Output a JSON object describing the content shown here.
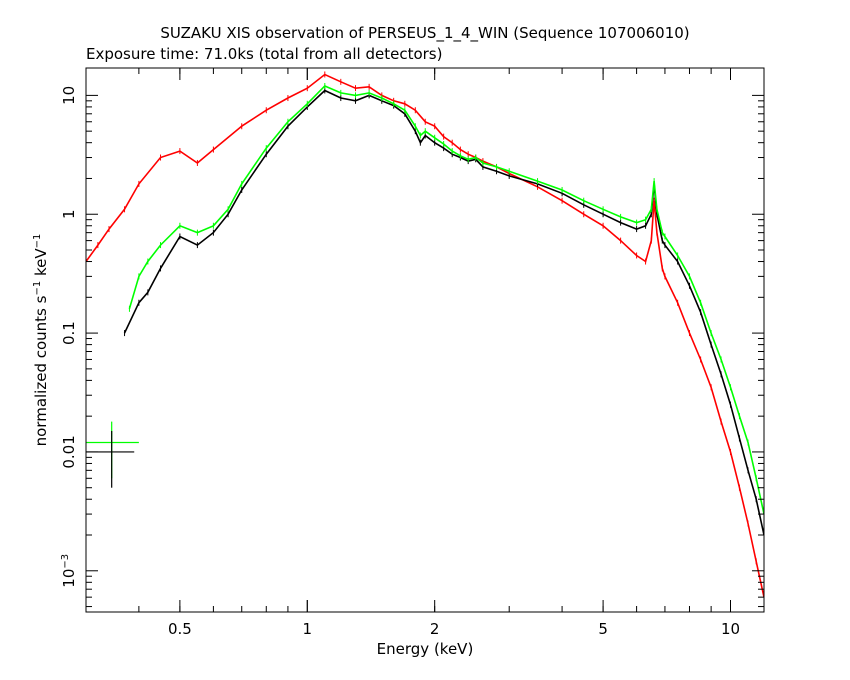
{
  "chart_data": {
    "type": "line",
    "title": "SUZAKU XIS observation of PERSEUS_1_4_WIN (Sequence 107006010)",
    "subtitle": "Exposure time: 71.0ks (total from all detectors)",
    "xlabel": "Energy (keV)",
    "ylabel_parts": {
      "main": "normalized counts s",
      "exp1": "−1",
      "mid": " keV",
      "exp2": "−1"
    },
    "x_scale": "log",
    "y_scale": "log",
    "xlim": [
      0.3,
      12.0
    ],
    "ylim": [
      0.00045,
      17
    ],
    "x_ticks": [
      {
        "value": 0.5,
        "label": "0.5"
      },
      {
        "value": 1,
        "label": "1"
      },
      {
        "value": 2,
        "label": "2"
      },
      {
        "value": 5,
        "label": "5"
      },
      {
        "value": 10,
        "label": "10"
      }
    ],
    "y_ticks": [
      {
        "value": 10,
        "label": "10"
      },
      {
        "value": 1,
        "label": "1"
      },
      {
        "value": 0.1,
        "label": "0.1"
      },
      {
        "value": 0.01,
        "label": "0.01"
      },
      {
        "value": 0.001,
        "label_base": "10",
        "label_exp": "−3"
      }
    ],
    "grid": false,
    "legend": "none",
    "series": [
      {
        "color": "#ff0000",
        "x": [
          0.3,
          0.32,
          0.34,
          0.37,
          0.4,
          0.45,
          0.5,
          0.55,
          0.6,
          0.7,
          0.8,
          0.9,
          1.0,
          1.1,
          1.2,
          1.3,
          1.4,
          1.5,
          1.6,
          1.7,
          1.8,
          1.9,
          2.0,
          2.1,
          2.2,
          2.3,
          2.4,
          2.5,
          2.6,
          2.8,
          3.0,
          3.5,
          4.0,
          4.5,
          5.0,
          5.5,
          6.0,
          6.3,
          6.5,
          6.6,
          6.7,
          6.9,
          7.0,
          7.5,
          8.0,
          8.5,
          9.0,
          9.5,
          10.0,
          10.5,
          11.0,
          11.5,
          12.0
        ],
        "y": [
          0.4,
          0.55,
          0.75,
          1.1,
          1.8,
          3.0,
          3.4,
          2.7,
          3.5,
          5.5,
          7.5,
          9.5,
          11.5,
          15.0,
          13.0,
          11.5,
          11.8,
          10.0,
          9.0,
          8.5,
          7.5,
          6.0,
          5.5,
          4.5,
          4.0,
          3.5,
          3.2,
          3.0,
          2.8,
          2.5,
          2.2,
          1.7,
          1.3,
          1.0,
          0.8,
          0.6,
          0.45,
          0.4,
          0.6,
          1.3,
          0.7,
          0.35,
          0.3,
          0.18,
          0.1,
          0.06,
          0.035,
          0.018,
          0.01,
          0.005,
          0.0025,
          0.0012,
          0.0006
        ]
      },
      {
        "color": "#000000",
        "x": [
          0.37,
          0.4,
          0.42,
          0.45,
          0.5,
          0.55,
          0.6,
          0.65,
          0.7,
          0.8,
          0.9,
          1.0,
          1.1,
          1.2,
          1.3,
          1.4,
          1.5,
          1.6,
          1.7,
          1.8,
          1.85,
          1.9,
          2.0,
          2.1,
          2.2,
          2.3,
          2.4,
          2.5,
          2.6,
          2.8,
          3.0,
          3.5,
          4.0,
          4.5,
          5.0,
          5.5,
          6.0,
          6.3,
          6.5,
          6.6,
          6.7,
          6.9,
          7.0,
          7.5,
          8.0,
          8.5,
          9.0,
          9.5,
          10.0,
          10.5,
          11.0,
          11.5,
          12.0
        ],
        "y": [
          0.1,
          0.18,
          0.22,
          0.35,
          0.65,
          0.55,
          0.7,
          1.0,
          1.6,
          3.2,
          5.5,
          8.0,
          11.0,
          9.5,
          9.0,
          10.0,
          9.0,
          8.2,
          7.0,
          5.0,
          4.0,
          4.6,
          4.0,
          3.6,
          3.2,
          3.0,
          2.8,
          2.9,
          2.5,
          2.3,
          2.1,
          1.8,
          1.5,
          1.2,
          1.0,
          0.85,
          0.75,
          0.8,
          1.0,
          1.8,
          1.0,
          0.6,
          0.55,
          0.4,
          0.25,
          0.15,
          0.08,
          0.045,
          0.025,
          0.013,
          0.007,
          0.004,
          0.002
        ]
      },
      {
        "color": "#00ff00",
        "x": [
          0.38,
          0.4,
          0.42,
          0.45,
          0.5,
          0.55,
          0.6,
          0.65,
          0.7,
          0.8,
          0.9,
          1.0,
          1.1,
          1.2,
          1.3,
          1.4,
          1.5,
          1.6,
          1.7,
          1.8,
          1.85,
          1.9,
          2.0,
          2.1,
          2.2,
          2.3,
          2.4,
          2.5,
          2.6,
          2.8,
          3.0,
          3.5,
          4.0,
          4.5,
          5.0,
          5.5,
          6.0,
          6.3,
          6.5,
          6.6,
          6.7,
          6.9,
          7.0,
          7.5,
          8.0,
          8.5,
          9.0,
          9.5,
          10.0,
          10.5,
          11.0,
          11.5,
          12.0
        ],
        "y": [
          0.16,
          0.3,
          0.4,
          0.55,
          0.8,
          0.7,
          0.8,
          1.1,
          1.8,
          3.6,
          6.0,
          8.5,
          12.0,
          10.5,
          10.0,
          10.5,
          9.5,
          8.5,
          7.5,
          5.5,
          4.6,
          5.0,
          4.4,
          3.9,
          3.4,
          3.1,
          2.9,
          3.0,
          2.7,
          2.5,
          2.3,
          1.9,
          1.6,
          1.3,
          1.1,
          0.95,
          0.85,
          0.9,
          1.1,
          1.9,
          1.1,
          0.7,
          0.65,
          0.45,
          0.3,
          0.18,
          0.1,
          0.06,
          0.035,
          0.02,
          0.012,
          0.006,
          0.003
        ]
      }
    ],
    "annotations": [
      {
        "type": "error-bar",
        "color": "#00ff00",
        "x": 0.345,
        "y": 0.012,
        "xerr": [
          0.3,
          0.4
        ],
        "yerr": [
          0.006,
          0.018
        ]
      },
      {
        "type": "error-bar",
        "color": "#000000",
        "x": 0.345,
        "y": 0.01,
        "xerr": [
          0.3,
          0.39
        ],
        "yerr": [
          0.005,
          0.015
        ]
      }
    ]
  }
}
